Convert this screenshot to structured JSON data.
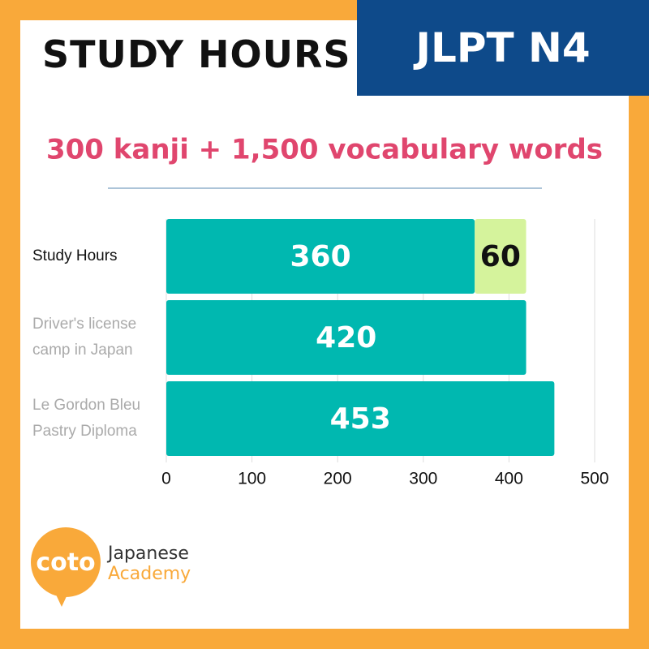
{
  "header": {
    "title": "STUDY HOURS",
    "badge": "JLPT N4"
  },
  "chart_data": {
    "type": "bar",
    "orientation": "horizontal",
    "stacked": true,
    "subtitle": "300 kanji + 1,500 vocabulary words",
    "categories": [
      "Study Hours",
      "Driver's license camp in Japan",
      "Le Gordon Bleu Pastry Diploma"
    ],
    "series": [
      {
        "color": "#00b8b0",
        "values": [
          360,
          420,
          453
        ]
      },
      {
        "color": "#d5f39c",
        "values": [
          60,
          null,
          null
        ]
      }
    ],
    "xlim": [
      0,
      500
    ],
    "xticks": [
      0,
      100,
      200,
      300,
      400,
      500
    ],
    "grid": true
  },
  "logo": {
    "mark": "coto",
    "line1": "Japanese",
    "line2": "Academy"
  }
}
